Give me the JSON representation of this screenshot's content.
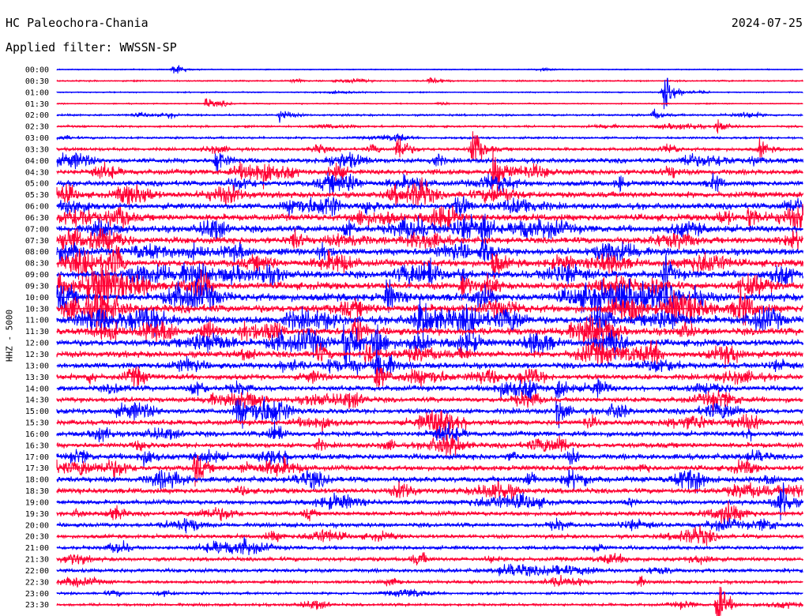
{
  "header": {
    "station": "HC Paleochora-Chania",
    "date": "2024-07-25",
    "filter": "Applied filter: WWSSN-SP"
  },
  "chart_data": {
    "type": "line",
    "ylabel": "HHZ - 5000",
    "row_labels": [
      "00:00",
      "00:30",
      "01:00",
      "01:30",
      "02:00",
      "02:30",
      "03:00",
      "03:30",
      "04:00",
      "04:30",
      "05:00",
      "05:30",
      "06:00",
      "06:30",
      "07:00",
      "07:30",
      "08:00",
      "08:30",
      "09:00",
      "09:30",
      "10:00",
      "10:30",
      "11:00",
      "11:30",
      "12:00",
      "12:30",
      "13:00",
      "13:30",
      "14:00",
      "14:30",
      "15:00",
      "15:30",
      "16:00",
      "16:30",
      "17:00",
      "17:30",
      "18:00",
      "18:30",
      "19:00",
      "19:30",
      "20:00",
      "20:30",
      "21:00",
      "21:30",
      "22:00",
      "22:30",
      "23:00",
      "23:30"
    ],
    "series_colors": [
      "#0000ff",
      "#ff0033"
    ],
    "noise_level": [
      0.5,
      0.7,
      0.6,
      0.6,
      1.0,
      1.0,
      1.1,
      1.6,
      2.4,
      2.6,
      2.7,
      3.0,
      3.0,
      3.3,
      3.4,
      3.2,
      3.3,
      3.5,
      3.6,
      3.6,
      3.9,
      3.9,
      3.9,
      3.5,
      3.4,
      3.2,
      2.9,
      2.8,
      2.6,
      2.5,
      2.7,
      2.6,
      2.5,
      2.6,
      2.8,
      2.6,
      2.8,
      2.6,
      2.3,
      2.2,
      2.1,
      2.0,
      1.9,
      2.0,
      1.9,
      1.6,
      1.3,
      1.3
    ],
    "events": [
      {
        "row": 0,
        "minute": 5.5,
        "amplitude": 6
      },
      {
        "row": 1,
        "minute": 17.5,
        "amplitude": 5
      },
      {
        "row": 2,
        "minute": 28.5,
        "amplitude": 24
      },
      {
        "row": 3,
        "minute": 7,
        "amplitude": 6
      },
      {
        "row": 4,
        "minute": 10.5,
        "amplitude": 7
      },
      {
        "row": 4,
        "minute": 28,
        "amplitude": 5
      },
      {
        "row": 5,
        "minute": 31,
        "amplitude": 7
      },
      {
        "row": 7,
        "minute": 16,
        "amplitude": 16
      },
      {
        "row": 7,
        "minute": 19.5,
        "amplitude": 24
      },
      {
        "row": 7,
        "minute": 33,
        "amplitude": 8
      },
      {
        "row": 8,
        "minute": 7.5,
        "amplitude": 13
      },
      {
        "row": 9,
        "minute": 20.5,
        "amplitude": 26
      },
      {
        "row": 12,
        "minute": 14.5,
        "amplitude": 8
      },
      {
        "row": 13,
        "minute": 32.5,
        "amplitude": 12
      },
      {
        "row": 14,
        "minute": 20,
        "amplitude": 10
      },
      {
        "row": 16,
        "minute": 20,
        "amplitude": 14
      },
      {
        "row": 17,
        "minute": 20.5,
        "amplitude": 14
      },
      {
        "row": 18,
        "minute": 17.5,
        "amplitude": 12
      },
      {
        "row": 18,
        "minute": 28.5,
        "amplitude": 16
      },
      {
        "row": 19,
        "minute": 19,
        "amplitude": 14
      },
      {
        "row": 19,
        "minute": 28,
        "amplitude": 12
      },
      {
        "row": 20,
        "minute": 15.5,
        "amplitude": 16
      },
      {
        "row": 20,
        "minute": 27.5,
        "amplitude": 14
      },
      {
        "row": 20,
        "minute": 30,
        "amplitude": 12
      },
      {
        "row": 21,
        "minute": 27,
        "amplitude": 16
      },
      {
        "row": 22,
        "minute": 17,
        "amplitude": 14
      },
      {
        "row": 23,
        "minute": 14,
        "amplitude": 16
      },
      {
        "row": 24,
        "minute": 13.5,
        "amplitude": 28
      },
      {
        "row": 24,
        "minute": 15,
        "amplitude": 18
      },
      {
        "row": 24,
        "minute": 26,
        "amplitude": 14
      },
      {
        "row": 25,
        "minute": 14.5,
        "amplitude": 12
      },
      {
        "row": 26,
        "minute": 15,
        "amplitude": 20
      },
      {
        "row": 27,
        "minute": 15,
        "amplitude": 14
      },
      {
        "row": 28,
        "minute": 23.5,
        "amplitude": 14
      },
      {
        "row": 30,
        "minute": 23.5,
        "amplitude": 14
      },
      {
        "row": 30,
        "minute": 8.5,
        "amplitude": 9
      },
      {
        "row": 35,
        "minute": 6.5,
        "amplitude": 16
      },
      {
        "row": 38,
        "minute": 34,
        "amplitude": 18
      },
      {
        "row": 47,
        "minute": 31,
        "amplitude": 26
      }
    ]
  }
}
